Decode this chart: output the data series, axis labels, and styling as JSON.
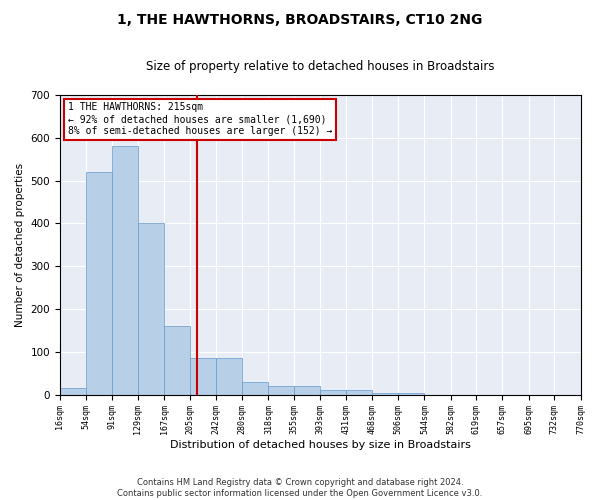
{
  "title": "1, THE HAWTHORNS, BROADSTAIRS, CT10 2NG",
  "subtitle": "Size of property relative to detached houses in Broadstairs",
  "xlabel": "Distribution of detached houses by size in Broadstairs",
  "ylabel": "Number of detached properties",
  "bar_color": "#b8cfe8",
  "bar_edge_color": "#6699cc",
  "background_color": "#e8edf5",
  "grid_color": "#ffffff",
  "bin_edges": [
    16,
    54,
    91,
    129,
    167,
    205,
    242,
    280,
    318,
    355,
    393,
    431,
    468,
    506,
    544,
    582,
    619,
    657,
    695,
    732,
    770
  ],
  "bar_heights": [
    15,
    520,
    580,
    400,
    160,
    85,
    85,
    30,
    20,
    20,
    10,
    10,
    5,
    3,
    0,
    0,
    0,
    0,
    0,
    0
  ],
  "property_size": 215,
  "property_label": "1 THE HAWTHORNS: 215sqm",
  "annotation_line1": "← 92% of detached houses are smaller (1,690)",
  "annotation_line2": "8% of semi-detached houses are larger (152) →",
  "vline_color": "#cc0000",
  "annotation_box_color": "#cc0000",
  "ylim": [
    0,
    700
  ],
  "yticks": [
    0,
    100,
    200,
    300,
    400,
    500,
    600,
    700
  ],
  "footnote1": "Contains HM Land Registry data © Crown copyright and database right 2024.",
  "footnote2": "Contains public sector information licensed under the Open Government Licence v3.0."
}
